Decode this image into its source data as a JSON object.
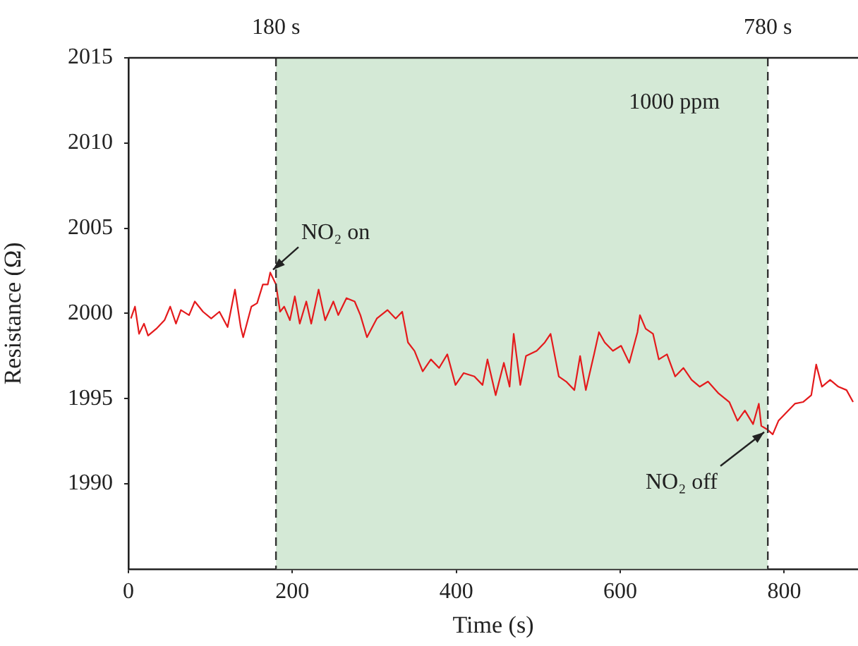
{
  "chart_data": {
    "type": "line",
    "xlabel": "Time (s)",
    "ylabel": "Resistance (Ω)",
    "xlim": [
      0,
      890
    ],
    "xticks": [
      0,
      200,
      400,
      600,
      800
    ],
    "ylim": [
      1985,
      2015
    ],
    "yticks": [
      1990,
      1995,
      2000,
      2005,
      2010,
      2015
    ],
    "grid": false,
    "legend": false,
    "marker": "none",
    "line_style": "solid",
    "series": [
      {
        "color": "#e41a1c",
        "x": [
          3,
          8,
          13,
          19,
          24,
          34,
          44,
          51,
          58,
          64,
          74,
          81,
          91,
          101,
          111,
          121,
          130,
          137,
          140,
          150,
          157,
          164,
          170,
          173,
          180,
          185,
          190,
          197,
          203,
          209,
          217,
          223,
          232,
          240,
          250,
          256,
          266,
          276,
          283,
          291,
          303,
          316,
          326,
          334,
          341,
          349,
          359,
          369,
          379,
          389,
          399,
          409,
          422,
          432,
          438,
          448,
          458,
          465,
          470,
          478,
          485,
          498,
          508,
          515,
          525,
          534,
          544,
          551,
          558,
          568,
          574,
          581,
          591,
          601,
          611,
          621,
          624,
          631,
          640,
          647,
          657,
          667,
          677,
          687,
          697,
          707,
          720,
          733,
          743,
          752,
          762,
          769,
          772,
          779,
          786,
          793,
          803,
          813,
          823,
          833,
          839,
          846,
          856,
          866,
          876,
          884
        ],
        "values": [
          1999.7,
          2000.4,
          1998.8,
          1999.4,
          1998.7,
          1999.1,
          1999.6,
          2000.4,
          1999.4,
          2000.2,
          1999.9,
          2000.7,
          2000.1,
          1999.7,
          2000.1,
          1999.2,
          2001.4,
          1999.2,
          1998.6,
          2000.4,
          2000.6,
          2001.7,
          2001.7,
          2002.4,
          2001.7,
          2000.1,
          2000.4,
          1999.6,
          2001.0,
          1999.4,
          2000.7,
          1999.4,
          2001.4,
          1999.6,
          2000.7,
          1999.9,
          2000.9,
          2000.7,
          1999.9,
          1998.6,
          1999.7,
          2000.2,
          1999.7,
          2000.1,
          1998.3,
          1997.8,
          1996.6,
          1997.3,
          1996.8,
          1997.6,
          1995.8,
          1996.5,
          1996.3,
          1995.8,
          1997.3,
          1995.2,
          1997.1,
          1995.7,
          1998.8,
          1995.8,
          1997.5,
          1997.8,
          1998.3,
          1998.8,
          1996.3,
          1996.0,
          1995.5,
          1997.5,
          1995.5,
          1997.6,
          1998.9,
          1998.3,
          1997.8,
          1998.1,
          1997.1,
          1998.9,
          1999.9,
          1999.1,
          1998.8,
          1997.3,
          1997.6,
          1996.3,
          1996.8,
          1996.1,
          1995.7,
          1996.0,
          1995.3,
          1994.8,
          1993.7,
          1994.3,
          1993.5,
          1994.7,
          1993.4,
          1993.2,
          1992.9,
          1993.7,
          1994.2,
          1994.7,
          1994.8,
          1995.2,
          1997.0,
          1995.7,
          1996.1,
          1995.7,
          1995.5,
          1994.8
        ]
      }
    ],
    "ref_lines": [
      {
        "axis": "x",
        "value": 180,
        "label": "180 s",
        "color": "#333333",
        "line_style": "dashed"
      },
      {
        "axis": "x",
        "value": 780,
        "label": "780 s",
        "color": "#333333",
        "line_style": "dashed"
      }
    ],
    "bands": [
      {
        "axis": "x",
        "from": 180,
        "to": 780,
        "label": "1000 ppm",
        "color": "#d4e9d6"
      }
    ],
    "annotations": [
      {
        "text": "NO₂ on",
        "x": 173,
        "y": 2002.4
      },
      {
        "text": "NO₂ off",
        "x": 779,
        "y": 1993.2
      }
    ]
  }
}
